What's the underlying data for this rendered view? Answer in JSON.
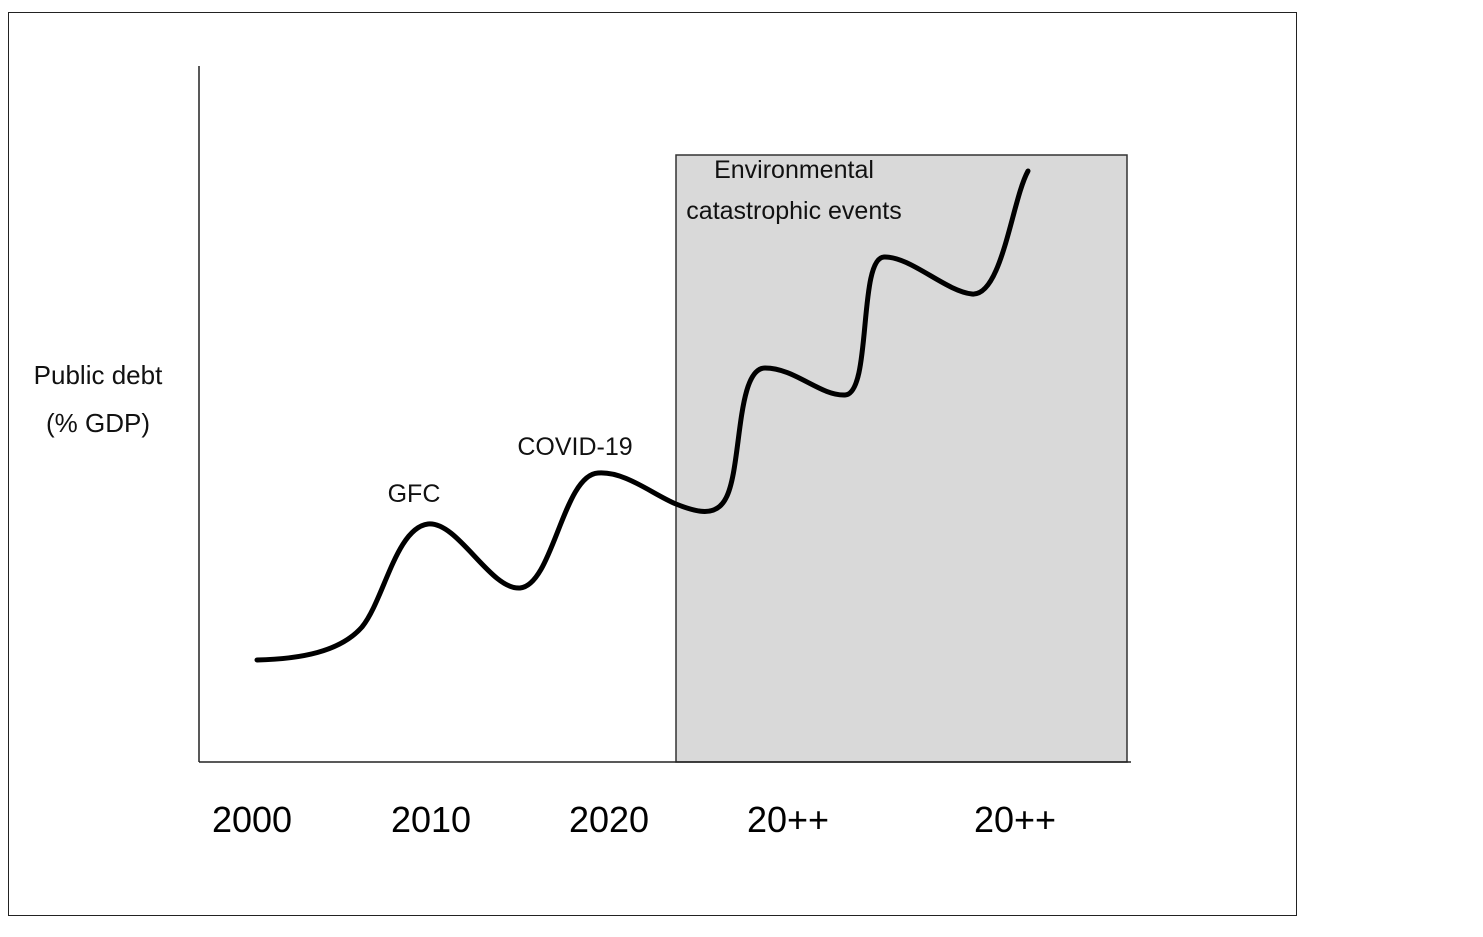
{
  "chart_data": {
    "type": "line",
    "title": "",
    "ylabel": [
      "Public debt",
      "(% GDP)"
    ],
    "xlabel": "",
    "x_tick_labels": [
      "2000",
      "2010",
      "2020",
      "20++",
      "20++"
    ],
    "series": [
      {
        "shape": "illustrative stepwise rising curve"
      }
    ],
    "annotations": [
      {
        "text": "GFC"
      },
      {
        "text": "COVID-19"
      }
    ],
    "shaded_region": {
      "label": [
        "Environmental",
        "catastrophic events"
      ],
      "color": "#d9d9d9"
    },
    "grid": false,
    "legend": "none",
    "colors": {
      "line": "#000000",
      "shade": "#d9d9d9",
      "axes": "#222222"
    }
  }
}
